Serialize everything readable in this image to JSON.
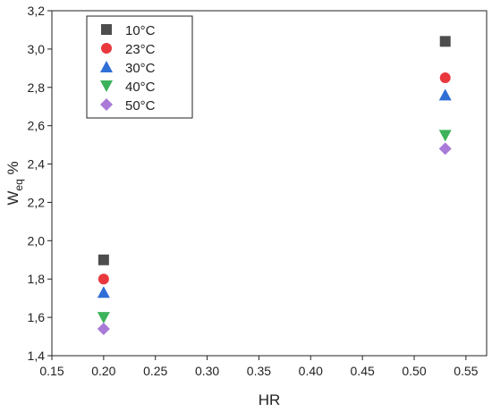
{
  "chart_data": {
    "type": "scatter",
    "xlabel": "HR",
    "ylabel_main": "W",
    "ylabel_sub": "eq",
    "ylabel_suffix": " %",
    "xlim": [
      0.15,
      0.57
    ],
    "ylim": [
      1.4,
      3.2
    ],
    "xticks": [
      0.15,
      0.2,
      0.25,
      0.3,
      0.35,
      0.4,
      0.45,
      0.5,
      0.55
    ],
    "xtick_labels": [
      "0.15",
      "0.20",
      "0.25",
      "0.30",
      "0.35",
      "0.40",
      "0.45",
      "0.50",
      "0.55"
    ],
    "yticks": [
      1.4,
      1.6,
      1.8,
      2.0,
      2.2,
      2.4,
      2.6,
      2.8,
      3.0,
      3.2
    ],
    "ytick_labels": [
      "1,4",
      "1,6",
      "1,8",
      "2,0",
      "2,2",
      "2,4",
      "2,6",
      "2,8",
      "3,0",
      "3,2"
    ],
    "grid": false,
    "legend_position": "top-left",
    "series": [
      {
        "name": "10°C",
        "marker": "square",
        "color": "#4d4d4d",
        "x": [
          0.2,
          0.53
        ],
        "y": [
          1.9,
          3.04
        ]
      },
      {
        "name": "23°C",
        "marker": "circle",
        "color": "#e8383d",
        "x": [
          0.2,
          0.53
        ],
        "y": [
          1.8,
          2.85
        ]
      },
      {
        "name": "30°C",
        "marker": "triangle-up",
        "color": "#2f6fd6",
        "x": [
          0.2,
          0.53
        ],
        "y": [
          1.73,
          2.76
        ]
      },
      {
        "name": "40°C",
        "marker": "triangle-down",
        "color": "#3cb35a",
        "x": [
          0.2,
          0.53
        ],
        "y": [
          1.6,
          2.55
        ]
      },
      {
        "name": "50°C",
        "marker": "diamond",
        "color": "#a97ad8",
        "x": [
          0.2,
          0.53
        ],
        "y": [
          1.54,
          2.48
        ]
      }
    ]
  }
}
